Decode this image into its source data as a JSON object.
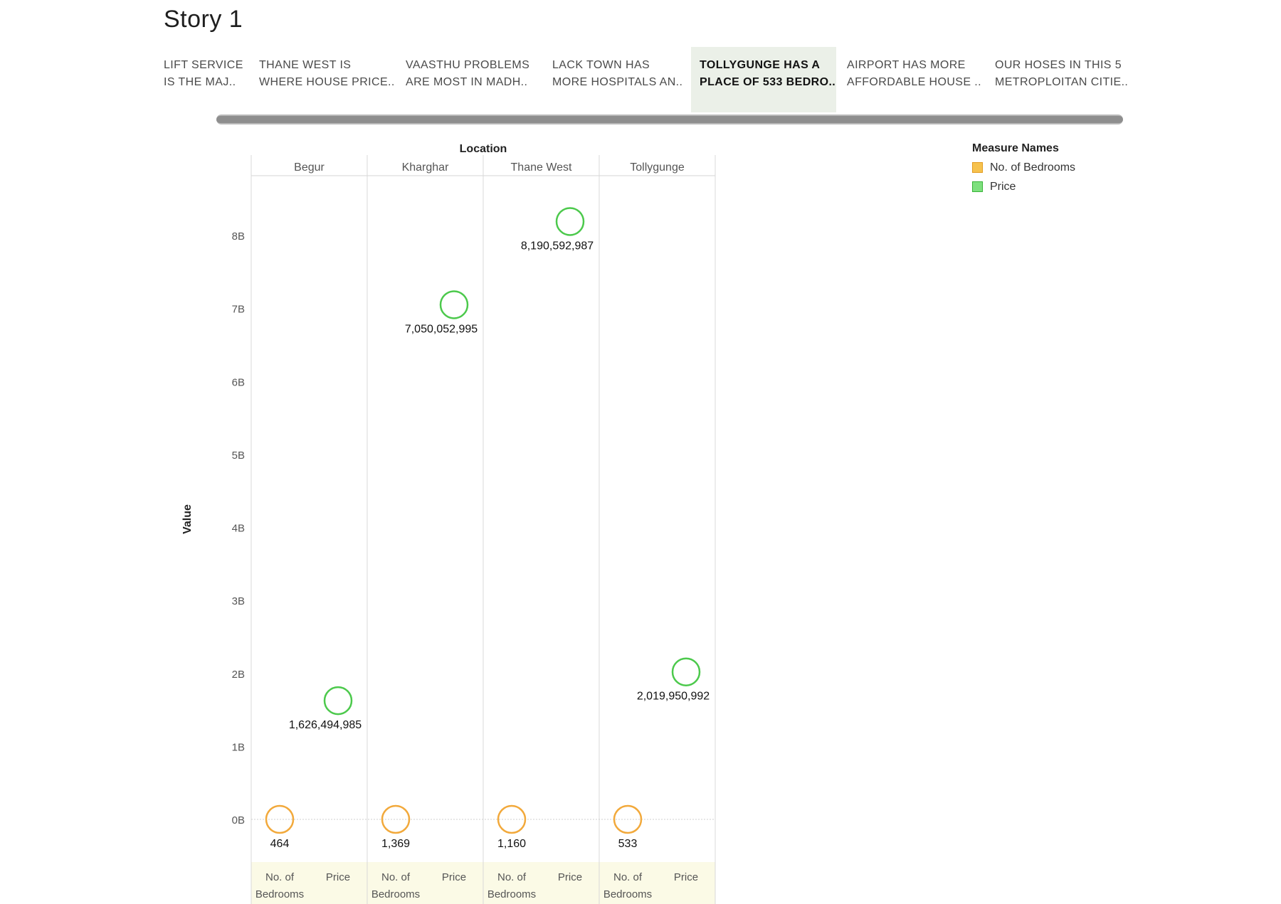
{
  "story": {
    "title": "Story 1"
  },
  "tabs": [
    {
      "line1": "LIFT SERVICE",
      "line2": "IS THE MAJ..",
      "active": false
    },
    {
      "line1": "THANE WEST IS",
      "line2": "WHERE HOUSE PRICE..",
      "active": false
    },
    {
      "line1": "VAASTHU PROBLEMS",
      "line2": "ARE  MOST IN MADH..",
      "active": false
    },
    {
      "line1": "LACK TOWN HAS",
      "line2": "MORE HOSPITALS AN..",
      "active": false
    },
    {
      "line1": "TOLLYGUNGE  HAS A",
      "line2": "PLACE OF 533 BEDRO..",
      "active": true
    },
    {
      "line1": "AIRPORT HAS MORE",
      "line2": "AFFORDABLE  HOUSE ..",
      "active": false
    },
    {
      "line1": "OUR HOSES IN THIS 5",
      "line2": "METROPLOITAN CITIE..",
      "active": false
    }
  ],
  "legend": {
    "title": "Measure Names",
    "items": [
      {
        "label": "No. of Bedrooms",
        "color": "#f2a93b"
      },
      {
        "label": "Price",
        "color": "#4cc94c"
      }
    ]
  },
  "chart_data": {
    "type": "scatter",
    "column_header_title": "Location",
    "ylabel": "Value",
    "ylim": [
      0,
      9200000000
    ],
    "y_ticks": [
      {
        "value": 0,
        "label": "0B"
      },
      {
        "value": 1000000000,
        "label": "1B"
      },
      {
        "value": 2000000000,
        "label": "2B"
      },
      {
        "value": 3000000000,
        "label": "3B"
      },
      {
        "value": 4000000000,
        "label": "4B"
      },
      {
        "value": 5000000000,
        "label": "5B"
      },
      {
        "value": 6000000000,
        "label": "6B"
      },
      {
        "value": 7000000000,
        "label": "7B"
      },
      {
        "value": 8000000000,
        "label": "8B"
      }
    ],
    "grid": false,
    "legend_position": "top-right",
    "measures": [
      "No. of Bedrooms",
      "Price"
    ],
    "measure_axis_labels": [
      [
        "No. of",
        "Bedrooms"
      ],
      [
        "Price"
      ]
    ],
    "colors": {
      "No. of Bedrooms": "#f2a93b",
      "Price": "#4cc94c"
    },
    "locations": [
      {
        "name": "Begur",
        "values": [
          464,
          1626494985
        ],
        "labels": [
          "464",
          "1,626,494,985"
        ]
      },
      {
        "name": "Kharghar",
        "values": [
          1369,
          7050052995
        ],
        "labels": [
          "1,369",
          "7,050,052,995"
        ]
      },
      {
        "name": "Thane West",
        "values": [
          1160,
          8190592987
        ],
        "labels": [
          "1,160",
          "8,190,592,987"
        ]
      },
      {
        "name": "Tollygunge",
        "values": [
          533,
          2019950992
        ],
        "labels": [
          "533",
          "2,019,950,992"
        ]
      }
    ]
  }
}
